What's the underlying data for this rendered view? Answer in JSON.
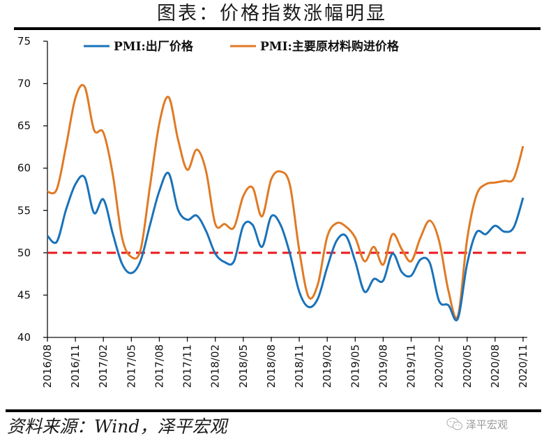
{
  "chart_data": {
    "type": "line",
    "title": "图表：价格指数涨幅明显",
    "source": "资料来源：Wind，泽平宏观",
    "watermark": "泽平宏观",
    "xlabel": "",
    "ylabel": "",
    "ylim": [
      40,
      75
    ],
    "yticks": [
      "40",
      "45",
      "50",
      "55",
      "60",
      "65",
      "70",
      "75"
    ],
    "ytick_values": [
      40,
      45,
      50,
      55,
      60,
      65,
      70,
      75
    ],
    "xtick_labels": [
      "2016/08",
      "2016/11",
      "2017/02",
      "2017/05",
      "2017/08",
      "2017/11",
      "2018/02",
      "2018/05",
      "2018/08",
      "2018/11",
      "2019/02",
      "2019/05",
      "2019/08",
      "2019/11",
      "2020/02",
      "2020/05",
      "2020/08",
      "2020/11"
    ],
    "xtick_step_months": 3,
    "x_start": "2016/08",
    "x_end": "2020/11",
    "grid": false,
    "legend": "top",
    "reference_line": {
      "value": 50,
      "color": "#e8181d",
      "style": "dashed"
    },
    "series": [
      {
        "name": "PMI:出厂价格",
        "color": "#1a72b9",
        "values": [
          52.0,
          51.3,
          55.1,
          58.1,
          58.9,
          54.7,
          56.3,
          52.3,
          48.7,
          47.6,
          49.1,
          53.3,
          57.3,
          59.4,
          55.1,
          53.9,
          54.4,
          52.6,
          49.9,
          48.9,
          49.0,
          53.2,
          53.3,
          50.7,
          54.3,
          53.3,
          49.9,
          45.4,
          43.6,
          44.6,
          48.3,
          51.4,
          52.0,
          49.0,
          45.4,
          46.9,
          46.7,
          49.9,
          47.7,
          47.3,
          49.2,
          48.8,
          44.3,
          43.8,
          42.2,
          48.7,
          52.4,
          52.2,
          53.2,
          52.5,
          53.0,
          56.5
        ]
      },
      {
        "name": "PMI:主要原材料购进价格",
        "color": "#e07a24",
        "values": [
          57.2,
          57.5,
          62.6,
          68.3,
          69.6,
          64.5,
          64.2,
          59.3,
          51.8,
          49.5,
          50.4,
          57.9,
          65.3,
          68.4,
          63.4,
          59.8,
          62.2,
          59.7,
          53.4,
          53.4,
          53.0,
          56.7,
          57.7,
          54.3,
          58.7,
          59.6,
          58.0,
          50.3,
          44.8,
          46.3,
          51.9,
          53.5,
          53.1,
          51.8,
          49.0,
          50.7,
          48.6,
          52.2,
          50.4,
          49.0,
          51.8,
          53.8,
          51.4,
          45.5,
          42.5,
          51.6,
          56.8,
          58.1,
          58.3,
          58.5,
          58.8,
          62.6
        ]
      }
    ]
  }
}
